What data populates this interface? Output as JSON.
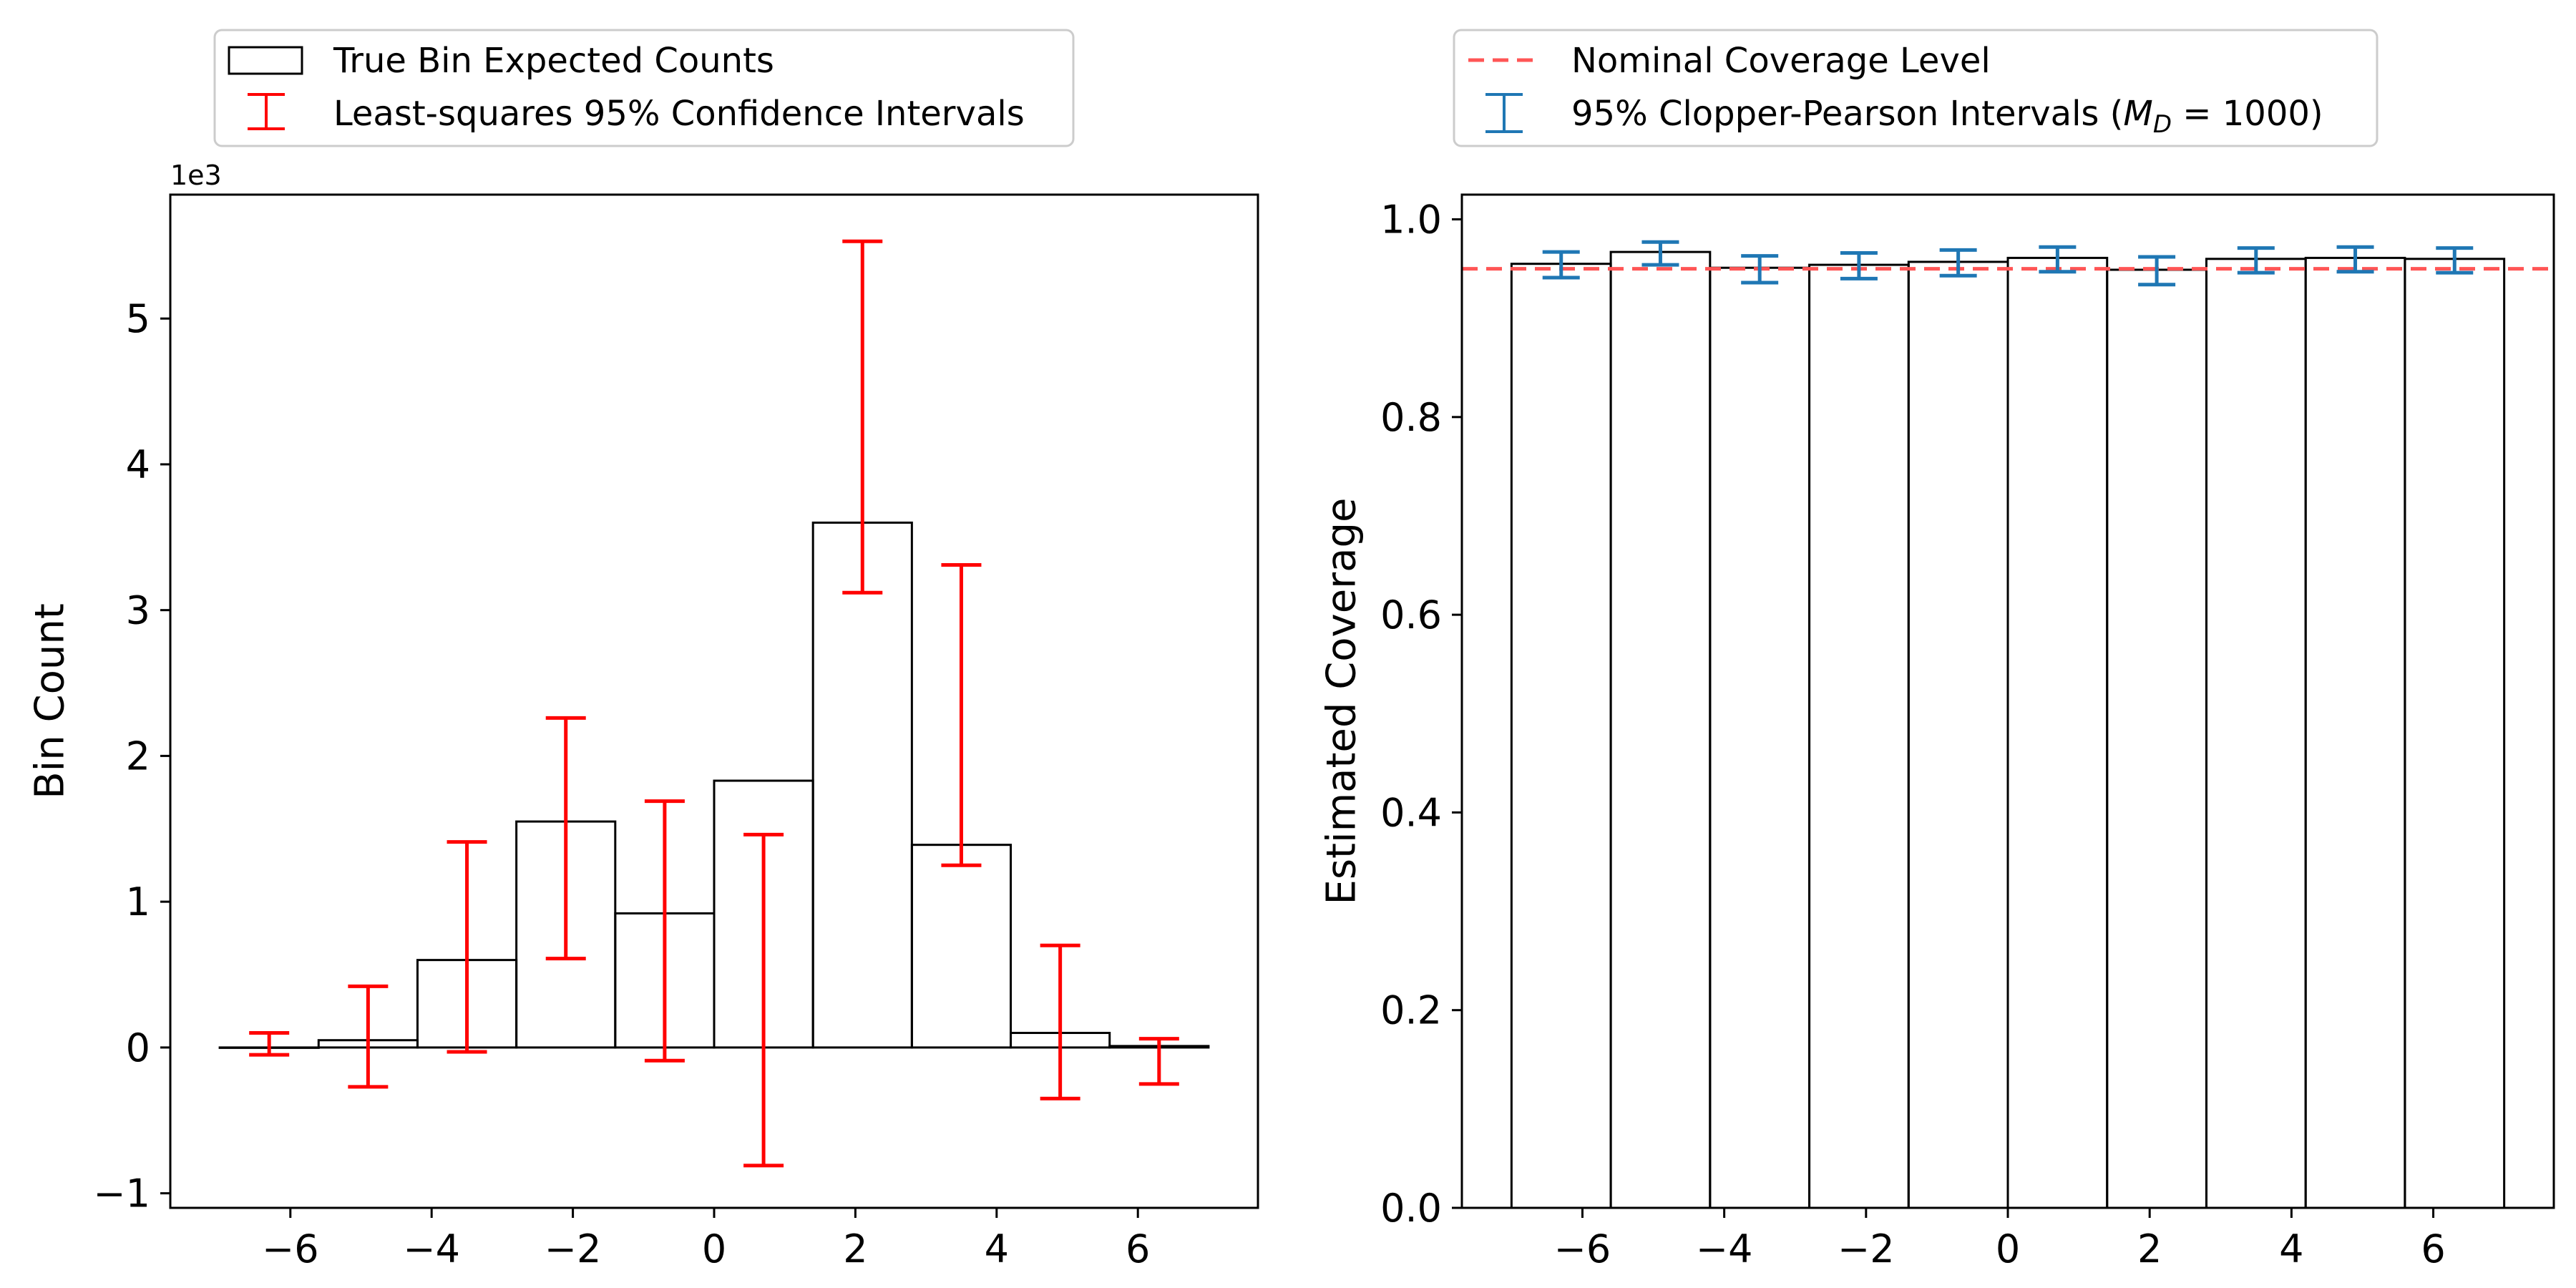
{
  "chart_data": [
    {
      "type": "bar",
      "panel": "left",
      "ylabel": "Bin Count",
      "xlabel": "",
      "offset_label": "1e3",
      "xlim": [
        -7.7,
        7.7
      ],
      "ylim": [
        -1.1,
        5.85
      ],
      "xticks": [
        -6,
        -4,
        -2,
        0,
        2,
        4,
        6
      ],
      "xtick_labels": [
        "−6",
        "−4",
        "−2",
        "0",
        "2",
        "4",
        "6"
      ],
      "yticks": [
        -1,
        0,
        1,
        2,
        3,
        4,
        5
      ],
      "ytick_labels": [
        "−1",
        "0",
        "1",
        "2",
        "3",
        "4",
        "5"
      ],
      "bin_edges": [
        -7,
        -5.6,
        -4.2,
        -2.8,
        -1.4,
        0,
        1.4,
        2.8,
        4.2,
        5.6,
        7
      ],
      "bin_values": [
        0.0,
        0.05,
        0.6,
        1.55,
        0.92,
        1.83,
        3.6,
        1.39,
        0.1,
        0.01
      ],
      "ci_x": [
        -6.3,
        -4.9,
        -3.5,
        -2.1,
        -0.7,
        0.7,
        2.1,
        3.5,
        4.9,
        6.3
      ],
      "ci_lower": [
        -0.05,
        -0.27,
        -0.03,
        0.61,
        -0.09,
        -0.81,
        3.12,
        1.25,
        -0.35,
        -0.25
      ],
      "ci_upper": [
        0.1,
        0.42,
        1.41,
        2.26,
        1.69,
        1.46,
        5.53,
        3.31,
        0.7,
        0.06
      ],
      "bar_color": "#000000",
      "ci_color": "#ff0000",
      "legend": {
        "placement": "top",
        "entries": [
          "True Bin Expected Counts",
          "Least-squares 95% Confidence Intervals"
        ]
      }
    },
    {
      "type": "bar",
      "panel": "right",
      "ylabel": "Estimated Coverage",
      "xlabel": "",
      "xlim": [
        -7.7,
        7.7
      ],
      "ylim": [
        0.0,
        1.025
      ],
      "xticks": [
        -6,
        -4,
        -2,
        0,
        2,
        4,
        6
      ],
      "xtick_labels": [
        "−6",
        "−4",
        "−2",
        "0",
        "2",
        "4",
        "6"
      ],
      "yticks": [
        0.0,
        0.2,
        0.4,
        0.6,
        0.8,
        1.0
      ],
      "ytick_labels": [
        "0.0",
        "0.2",
        "0.4",
        "0.6",
        "0.8",
        "1.0"
      ],
      "bin_edges": [
        -7,
        -5.6,
        -4.2,
        -2.8,
        -1.4,
        0,
        1.4,
        2.8,
        4.2,
        5.6,
        7
      ],
      "bin_values": [
        0.955,
        0.967,
        0.951,
        0.954,
        0.957,
        0.961,
        0.949,
        0.96,
        0.961,
        0.96
      ],
      "ci_x": [
        -6.3,
        -4.9,
        -3.5,
        -2.1,
        -0.7,
        0.7,
        2.1,
        3.5,
        4.9,
        6.3
      ],
      "ci_lower": [
        0.941,
        0.954,
        0.936,
        0.94,
        0.943,
        0.947,
        0.934,
        0.946,
        0.947,
        0.946
      ],
      "ci_upper": [
        0.967,
        0.977,
        0.963,
        0.966,
        0.969,
        0.972,
        0.962,
        0.971,
        0.972,
        0.971
      ],
      "nominal_level": 0.95,
      "bar_color": "#000000",
      "ci_color": "#1f77b4",
      "nominal_color": "#ff5555",
      "legend": {
        "placement": "top",
        "entries": [
          "Nominal Coverage Level",
          "95% Clopper-Pearson Intervals ($M_D = 1000$)"
        ]
      }
    }
  ]
}
